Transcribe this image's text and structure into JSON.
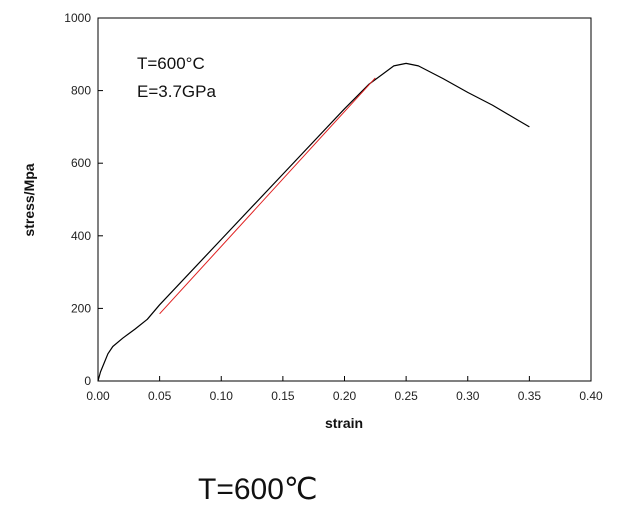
{
  "chart_data": {
    "type": "line",
    "title": "",
    "xlabel": "strain",
    "ylabel": "stress/Mpa",
    "xlim": [
      0.0,
      0.4
    ],
    "ylim": [
      0,
      1000
    ],
    "xticks": [
      "0.00",
      "0.05",
      "0.10",
      "0.15",
      "0.20",
      "0.25",
      "0.30",
      "0.35",
      "0.40"
    ],
    "yticks": [
      "0",
      "200",
      "400",
      "600",
      "800",
      "1000"
    ],
    "grid": false,
    "legend": "none",
    "annotations": [
      "T=600°C",
      "E=3.7GPa"
    ],
    "series": [
      {
        "color": "#000000",
        "x": [
          0.0,
          0.002,
          0.005,
          0.008,
          0.012,
          0.02,
          0.03,
          0.04,
          0.05,
          0.1,
          0.15,
          0.2,
          0.22,
          0.24,
          0.25,
          0.26,
          0.28,
          0.3,
          0.32,
          0.34,
          0.35
        ],
        "y": [
          0,
          25,
          50,
          75,
          95,
          118,
          143,
          170,
          210,
          390,
          570,
          750,
          818,
          868,
          875,
          868,
          833,
          795,
          760,
          720,
          700
        ]
      },
      {
        "color": "#e02020",
        "x": [
          0.05,
          0.225
        ],
        "y": [
          185,
          835
        ]
      }
    ]
  },
  "caption": "T=600℃"
}
